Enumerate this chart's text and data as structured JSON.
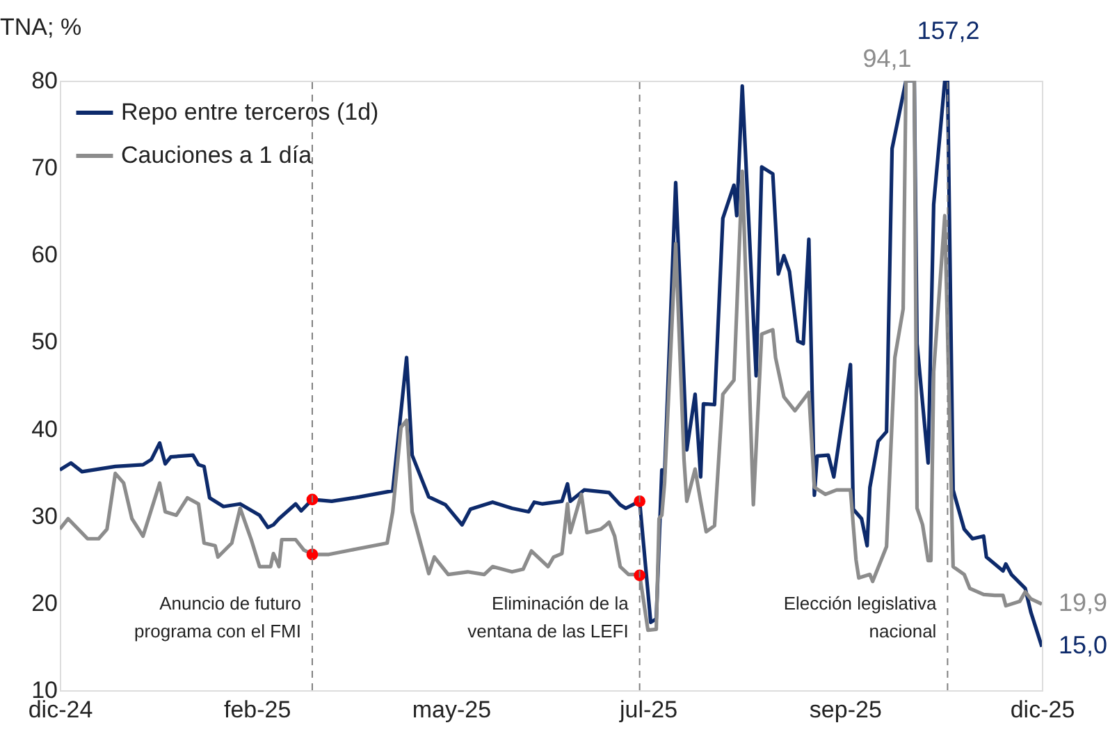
{
  "chart_data": {
    "type": "line",
    "ylabel": "TNA; %",
    "xlim": [
      "2024-12-16",
      "2025-12-05"
    ],
    "xticks": [
      {
        "value": "2024-12-16",
        "label": "dic-24"
      },
      {
        "value": "2025-02-25",
        "label": "feb-25"
      },
      {
        "value": "2025-05-06",
        "label": "may-25"
      },
      {
        "value": "2025-07-16",
        "label": "jul-25"
      },
      {
        "value": "2025-09-25",
        "label": "sep-25"
      },
      {
        "value": "2025-12-05",
        "label": "dic-25"
      }
    ],
    "ylim": [
      10,
      80
    ],
    "yticks": [
      10,
      20,
      30,
      40,
      50,
      60,
      70,
      80
    ],
    "grid": false,
    "legend": "top left",
    "line_style": "solid",
    "marker": "none",
    "series": [
      {
        "name": "Repo entre terceros (1d)",
        "color": "#0d2a6b",
        "x": [
          "2024-12-16",
          "2024-12-20",
          "2024-12-24",
          "2025-01-05",
          "2025-01-15",
          "2025-01-18",
          "2025-01-21",
          "2025-01-23",
          "2025-01-25",
          "2025-02-02",
          "2025-02-04",
          "2025-02-06",
          "2025-02-08",
          "2025-02-13",
          "2025-02-19",
          "2025-02-26",
          "2025-03-01",
          "2025-03-03",
          "2025-03-05",
          "2025-03-11",
          "2025-03-13",
          "2025-03-17",
          "2025-03-24",
          "2025-04-03",
          "2025-04-15",
          "2025-04-20",
          "2025-04-22",
          "2025-04-28",
          "2025-05-04",
          "2025-05-10",
          "2025-05-13",
          "2025-05-21",
          "2025-05-28",
          "2025-06-03",
          "2025-06-05",
          "2025-06-08",
          "2025-06-15",
          "2025-06-17",
          "2025-06-18",
          "2025-06-23",
          "2025-07-02",
          "2025-07-06",
          "2025-07-08",
          "2025-07-13",
          "2025-07-17",
          "2025-07-19",
          "2025-07-21",
          "2025-07-22",
          "2025-07-26",
          "2025-07-30",
          "2025-08-02",
          "2025-08-04",
          "2025-08-05",
          "2025-08-09",
          "2025-08-12",
          "2025-08-16",
          "2025-08-17",
          "2025-08-19",
          "2025-08-24",
          "2025-08-26",
          "2025-08-30",
          "2025-09-01",
          "2025-09-03",
          "2025-09-05",
          "2025-09-08",
          "2025-09-10",
          "2025-09-12",
          "2025-09-14",
          "2025-09-15",
          "2025-09-19",
          "2025-09-21",
          "2025-09-27",
          "2025-09-28",
          "2025-10-01",
          "2025-10-03",
          "2025-10-04",
          "2025-10-07",
          "2025-10-10",
          "2025-10-12",
          "2025-10-17",
          "2025-10-20",
          "2025-10-21",
          "2025-10-25",
          "2025-10-27",
          "2025-10-31",
          "2025-11-01",
          "2025-11-03",
          "2025-11-07",
          "2025-11-10",
          "2025-11-14",
          "2025-11-15",
          "2025-11-18",
          "2025-11-21",
          "2025-11-22",
          "2025-11-24",
          "2025-11-29",
          "2025-12-01",
          "2025-12-05"
        ],
        "values": [
          35.3,
          36.1,
          35.1,
          35.7,
          35.9,
          36.5,
          38.4,
          36.0,
          36.8,
          37.0,
          35.9,
          35.7,
          32.1,
          31.1,
          31.4,
          30.1,
          28.7,
          29.0,
          29.7,
          31.4,
          30.6,
          31.9,
          31.7,
          32.2,
          32.9,
          48.2,
          37.0,
          32.2,
          31.3,
          29.0,
          30.8,
          31.6,
          30.9,
          30.5,
          31.6,
          31.4,
          31.7,
          33.7,
          31.7,
          33.0,
          32.7,
          31.3,
          30.9,
          31.7,
          17.8,
          18.2,
          35.3,
          34.9,
          68.3,
          37.6,
          44.0,
          34.5,
          42.9,
          42.8,
          64.2,
          68.0,
          64.5,
          79.4,
          46.1,
          70.1,
          69.3,
          57.8,
          59.9,
          58.1,
          50.1,
          49.8,
          61.8,
          32.4,
          36.9,
          37.0,
          34.5,
          47.4,
          30.8,
          29.7,
          26.6,
          33.3,
          38.6,
          39.7,
          72.2,
          80,
          80,
          49.8,
          36.1,
          65.8,
          80,
          80,
          33.0,
          28.5,
          27.4,
          27.7,
          25.3,
          24.5,
          23.7,
          24.5,
          23.3,
          21.7,
          19.0,
          15.0
        ]
      },
      {
        "name": "Cauciones a 1 día",
        "color": "#8c8c8c",
        "x": [
          "2024-12-16",
          "2024-12-19",
          "2024-12-26",
          "2024-12-30",
          "2025-01-02",
          "2025-01-05",
          "2025-01-08",
          "2025-01-11",
          "2025-01-15",
          "2025-01-21",
          "2025-01-23",
          "2025-01-27",
          "2025-01-31",
          "2025-02-04",
          "2025-02-06",
          "2025-02-10",
          "2025-02-11",
          "2025-02-16",
          "2025-02-19",
          "2025-02-23",
          "2025-02-26",
          "2025-03-02",
          "2025-03-03",
          "2025-03-05",
          "2025-03-06",
          "2025-03-11",
          "2025-03-14",
          "2025-03-17",
          "2025-03-23",
          "2025-03-31",
          "2025-04-13",
          "2025-04-15",
          "2025-04-18",
          "2025-04-20",
          "2025-04-22",
          "2025-04-28",
          "2025-04-30",
          "2025-05-05",
          "2025-05-12",
          "2025-05-18",
          "2025-05-21",
          "2025-05-28",
          "2025-06-01",
          "2025-06-04",
          "2025-06-10",
          "2025-06-12",
          "2025-06-15",
          "2025-06-17",
          "2025-06-18",
          "2025-06-22",
          "2025-06-24",
          "2025-06-29",
          "2025-07-01",
          "2025-07-02",
          "2025-07-04",
          "2025-07-06",
          "2025-07-09",
          "2025-07-13",
          "2025-07-16",
          "2025-07-19",
          "2025-07-20",
          "2025-07-21",
          "2025-07-22",
          "2025-07-26",
          "2025-07-29",
          "2025-07-30",
          "2025-08-02",
          "2025-08-04",
          "2025-08-06",
          "2025-08-09",
          "2025-08-12",
          "2025-08-16",
          "2025-08-19",
          "2025-08-23",
          "2025-08-26",
          "2025-08-30",
          "2025-08-31",
          "2025-09-03",
          "2025-09-07",
          "2025-09-12",
          "2025-09-14",
          "2025-09-18",
          "2025-09-22",
          "2025-09-27",
          "2025-09-29",
          "2025-09-30",
          "2025-10-04",
          "2025-10-05",
          "2025-10-08",
          "2025-10-10",
          "2025-10-13",
          "2025-10-16",
          "2025-10-17",
          "2025-10-20",
          "2025-10-21",
          "2025-10-23",
          "2025-10-25",
          "2025-10-26",
          "2025-10-27",
          "2025-10-31",
          "2025-11-03",
          "2025-11-07",
          "2025-11-09",
          "2025-11-14",
          "2025-11-18",
          "2025-11-21",
          "2025-11-22",
          "2025-11-27",
          "2025-11-29",
          "2025-12-01",
          "2025-12-05"
        ],
        "values": [
          28.5,
          29.7,
          27.4,
          27.4,
          28.5,
          34.9,
          33.8,
          29.7,
          27.7,
          33.8,
          30.5,
          30.1,
          32.1,
          31.4,
          26.9,
          26.6,
          25.3,
          26.9,
          30.9,
          27.3,
          24.2,
          24.2,
          25.7,
          24.2,
          27.3,
          27.3,
          26.1,
          25.6,
          25.6,
          26.1,
          26.9,
          30.5,
          40.2,
          41.0,
          30.5,
          23.4,
          25.3,
          23.3,
          23.6,
          23.3,
          24.2,
          23.6,
          23.9,
          26.0,
          24.2,
          25.3,
          25.7,
          31.4,
          28.1,
          32.5,
          28.1,
          28.5,
          29.0,
          29.3,
          27.7,
          24.2,
          23.3,
          23.3,
          16.9,
          17.0,
          29.7,
          30.1,
          33.8,
          61.3,
          36.5,
          31.7,
          35.4,
          31.7,
          28.2,
          28.9,
          44.0,
          45.6,
          69.6,
          31.3,
          50.9,
          51.4,
          48.2,
          43.7,
          42.1,
          44.2,
          33.3,
          32.5,
          33.0,
          33.0,
          25.0,
          22.9,
          23.3,
          22.5,
          24.9,
          26.5,
          48.2,
          53.8,
          80,
          80,
          30.9,
          29.0,
          24.9,
          24.9,
          46.6,
          64.5,
          24.2,
          23.3,
          21.7,
          21.0,
          20.9,
          20.9,
          19.7,
          20.2,
          21.3,
          20.5,
          19.9
        ]
      },
      {
        "type": "scatter",
        "color": "#ff0000",
        "marker": "circle",
        "x": [
          "2025-03-17",
          "2025-03-17",
          "2025-07-13",
          "2025-07-13"
        ],
        "values": [
          31.9,
          25.6,
          31.7,
          23.2
        ]
      }
    ],
    "ref_lines": [
      {
        "axis": "x",
        "value": "2025-03-17",
        "label": "Anuncio de futuro\nprograma con el FMI",
        "color": "#808080",
        "line_style": "dashed"
      },
      {
        "axis": "x",
        "value": "2025-07-13",
        "label": "Eliminación de la\nventana de las LEFI",
        "color": "#808080",
        "line_style": "dashed"
      },
      {
        "axis": "x",
        "value": "2025-11-01",
        "label": "Elección legislativa\nnacional",
        "color": "#808080",
        "line_style": "dashed"
      }
    ],
    "annotations": [
      {
        "text": "157,2",
        "x": "2025-11-01",
        "y": 80
      },
      {
        "text": "94,1",
        "x": "2025-10-18",
        "y": 80
      },
      {
        "text": "15,0",
        "x": "2025-12-05",
        "y": 15.0
      },
      {
        "text": "19,9",
        "x": "2025-12-05",
        "y": 19.9
      }
    ]
  }
}
